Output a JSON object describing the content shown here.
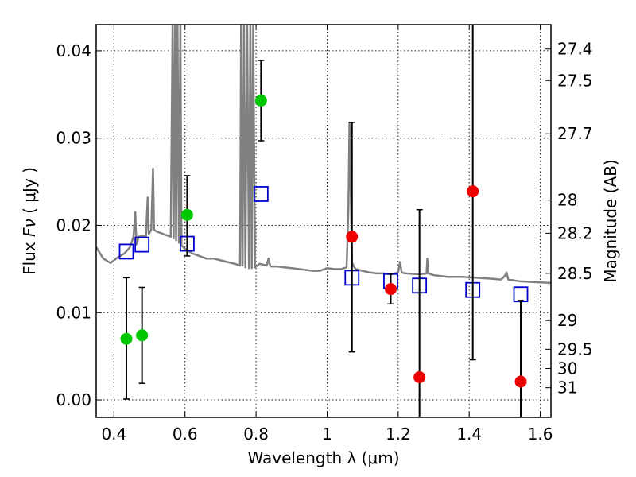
{
  "chart_data": {
    "type": "scatter",
    "xlabel": "Wavelength  λ (μm)",
    "ylabel_prefix": "Flux  ",
    "ylabel_symbol": "Fν",
    "ylabel_unit": "  ( μJy )",
    "y2label": "Magnitude (AB)",
    "xlim": [
      0.35,
      1.63
    ],
    "ylim": [
      -0.002,
      0.043
    ],
    "grid": true,
    "x_ticks": [
      {
        "value": 0.4,
        "label": "0.4"
      },
      {
        "value": 0.6,
        "label": "0.6"
      },
      {
        "value": 0.8,
        "label": "0.8"
      },
      {
        "value": 1.0,
        "label": "1"
      },
      {
        "value": 1.2,
        "label": "1.2"
      },
      {
        "value": 1.4,
        "label": "1.4"
      },
      {
        "value": 1.6,
        "label": "1.6"
      }
    ],
    "y_ticks": [
      {
        "value": 0.0,
        "label": "0.00"
      },
      {
        "value": 0.01,
        "label": "0.01"
      },
      {
        "value": 0.02,
        "label": "0.02"
      },
      {
        "value": 0.03,
        "label": "0.03"
      },
      {
        "value": 0.04,
        "label": "0.04"
      }
    ],
    "y2_ticks": [
      {
        "mag": "27.4",
        "flux": 0.0402
      },
      {
        "mag": "27.5",
        "flux": 0.0366
      },
      {
        "mag": "27.7",
        "flux": 0.0305
      },
      {
        "mag": "28",
        "flux": 0.0229
      },
      {
        "mag": "28.2",
        "flux": 0.0191
      },
      {
        "mag": "28.5",
        "flux": 0.0145
      },
      {
        "mag": "29",
        "flux": 0.0091
      },
      {
        "mag": "29.5",
        "flux": 0.0058
      },
      {
        "mag": "30",
        "flux": 0.0036
      },
      {
        "mag": "31",
        "flux": 0.0014
      }
    ],
    "series": [
      {
        "name": "model-template",
        "kind": "line",
        "color": "#808080",
        "points": [
          [
            0.35,
            0.0175
          ],
          [
            0.37,
            0.0162
          ],
          [
            0.39,
            0.0157
          ],
          [
            0.41,
            0.0163
          ],
          [
            0.43,
            0.0168
          ],
          [
            0.445,
            0.0175
          ],
          [
            0.455,
            0.0187
          ],
          [
            0.46,
            0.0215
          ],
          [
            0.463,
            0.0178
          ],
          [
            0.47,
            0.0187
          ],
          [
            0.48,
            0.0188
          ],
          [
            0.49,
            0.0187
          ],
          [
            0.495,
            0.0232
          ],
          [
            0.498,
            0.019
          ],
          [
            0.505,
            0.0195
          ],
          [
            0.51,
            0.0265
          ],
          [
            0.513,
            0.0195
          ],
          [
            0.52,
            0.0193
          ],
          [
            0.54,
            0.019
          ],
          [
            0.56,
            0.0187
          ],
          [
            0.565,
            0.043
          ],
          [
            0.568,
            0.0185
          ],
          [
            0.572,
            0.043
          ],
          [
            0.575,
            0.0183
          ],
          [
            0.579,
            0.043
          ],
          [
            0.583,
            0.018
          ],
          [
            0.587,
            0.043
          ],
          [
            0.59,
            0.0177
          ],
          [
            0.6,
            0.0173
          ],
          [
            0.62,
            0.0168
          ],
          [
            0.64,
            0.0165
          ],
          [
            0.66,
            0.0162
          ],
          [
            0.68,
            0.0162
          ],
          [
            0.7,
            0.016
          ],
          [
            0.72,
            0.0158
          ],
          [
            0.74,
            0.0156
          ],
          [
            0.755,
            0.0154
          ],
          [
            0.758,
            0.043
          ],
          [
            0.762,
            0.0154
          ],
          [
            0.766,
            0.043
          ],
          [
            0.77,
            0.0152
          ],
          [
            0.775,
            0.043
          ],
          [
            0.78,
            0.0151
          ],
          [
            0.784,
            0.043
          ],
          [
            0.788,
            0.0151
          ],
          [
            0.792,
            0.043
          ],
          [
            0.797,
            0.0152
          ],
          [
            0.81,
            0.0156
          ],
          [
            0.82,
            0.0155
          ],
          [
            0.83,
            0.0154
          ],
          [
            0.835,
            0.0162
          ],
          [
            0.84,
            0.0153
          ],
          [
            0.86,
            0.0153
          ],
          [
            0.88,
            0.0152
          ],
          [
            0.9,
            0.0151
          ],
          [
            0.92,
            0.015
          ],
          [
            0.94,
            0.0149
          ],
          [
            0.96,
            0.0148
          ],
          [
            0.98,
            0.0148
          ],
          [
            1.0,
            0.0151
          ],
          [
            1.02,
            0.015
          ],
          [
            1.04,
            0.015
          ],
          [
            1.055,
            0.0152
          ],
          [
            1.06,
            0.022
          ],
          [
            1.063,
            0.0318
          ],
          [
            1.066,
            0.025
          ],
          [
            1.07,
            0.0157
          ],
          [
            1.08,
            0.015
          ],
          [
            1.1,
            0.0148
          ],
          [
            1.12,
            0.0146
          ],
          [
            1.14,
            0.0145
          ],
          [
            1.16,
            0.0145
          ],
          [
            1.18,
            0.0144
          ],
          [
            1.2,
            0.0146
          ],
          [
            1.205,
            0.0158
          ],
          [
            1.21,
            0.0146
          ],
          [
            1.22,
            0.0145
          ],
          [
            1.26,
            0.0144
          ],
          [
            1.28,
            0.0145
          ],
          [
            1.282,
            0.0162
          ],
          [
            1.285,
            0.0145
          ],
          [
            1.3,
            0.0143
          ],
          [
            1.34,
            0.0141
          ],
          [
            1.38,
            0.0141
          ],
          [
            1.42,
            0.014
          ],
          [
            1.46,
            0.0139
          ],
          [
            1.49,
            0.0138
          ],
          [
            1.5,
            0.0142
          ],
          [
            1.505,
            0.0146
          ],
          [
            1.51,
            0.0138
          ],
          [
            1.54,
            0.0136
          ],
          [
            1.58,
            0.0135
          ],
          [
            1.63,
            0.0134
          ]
        ]
      },
      {
        "name": "model-photometry",
        "kind": "scatter",
        "marker": "square",
        "color": "#0000cc",
        "points": [
          [
            0.435,
            0.017
          ],
          [
            0.479,
            0.0178
          ],
          [
            0.606,
            0.0179
          ],
          [
            0.814,
            0.0236
          ],
          [
            1.07,
            0.014
          ],
          [
            1.179,
            0.0136
          ],
          [
            1.26,
            0.0131
          ],
          [
            1.41,
            0.0126
          ],
          [
            1.545,
            0.0121
          ]
        ]
      },
      {
        "name": "observed-optical",
        "kind": "scatter",
        "marker": "circle",
        "color": "#00c800",
        "points": [
          {
            "x": 0.435,
            "y": 0.007,
            "err_lo": 0.0001,
            "err_hi": 0.014
          },
          {
            "x": 0.479,
            "y": 0.0074,
            "err_lo": 0.0019,
            "err_hi": 0.0129
          },
          {
            "x": 0.606,
            "y": 0.0212,
            "err_lo": 0.0165,
            "err_hi": 0.0257
          },
          {
            "x": 0.814,
            "y": 0.0343,
            "err_lo": 0.0297,
            "err_hi": 0.0389
          }
        ]
      },
      {
        "name": "observed-nir",
        "kind": "scatter",
        "marker": "circle",
        "color": "#ee0000",
        "points": [
          {
            "x": 1.07,
            "y": 0.0187,
            "err_lo": 0.0055,
            "err_hi": 0.0318
          },
          {
            "x": 1.179,
            "y": 0.0127,
            "err_lo": 0.011,
            "err_hi": 0.0145
          },
          {
            "x": 1.26,
            "y": 0.0026,
            "err_lo": -0.002,
            "err_hi": 0.0218
          },
          {
            "x": 1.41,
            "y": 0.0239,
            "err_lo": 0.0046,
            "err_hi": 0.043
          },
          {
            "x": 1.545,
            "y": 0.0021,
            "err_lo": -0.002,
            "err_hi": 0.0114
          }
        ]
      }
    ]
  }
}
